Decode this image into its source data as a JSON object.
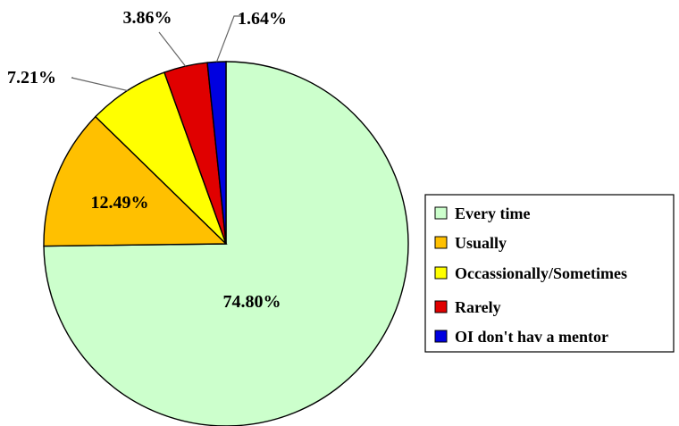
{
  "chart_data": {
    "type": "pie",
    "title": "",
    "slices": [
      {
        "label": "Every time",
        "value": 74.8,
        "display": "74.80%",
        "color": "#ccffcc"
      },
      {
        "label": "Usually",
        "value": 12.49,
        "display": "12.49%",
        "color": "#ffc000"
      },
      {
        "label": "Occassionally/Sometimes",
        "value": 7.21,
        "display": "7.21%",
        "color": "#ffff00"
      },
      {
        "label": "Rarely",
        "value": 3.86,
        "display": "3.86%",
        "color": "#e00000"
      },
      {
        "label": "OI don't hav a mentor",
        "value": 1.64,
        "display": "1.64%",
        "color": "#0000e0"
      }
    ],
    "start_angle": "12 o'clock",
    "direction": "clockwise",
    "legend_position": "right"
  }
}
